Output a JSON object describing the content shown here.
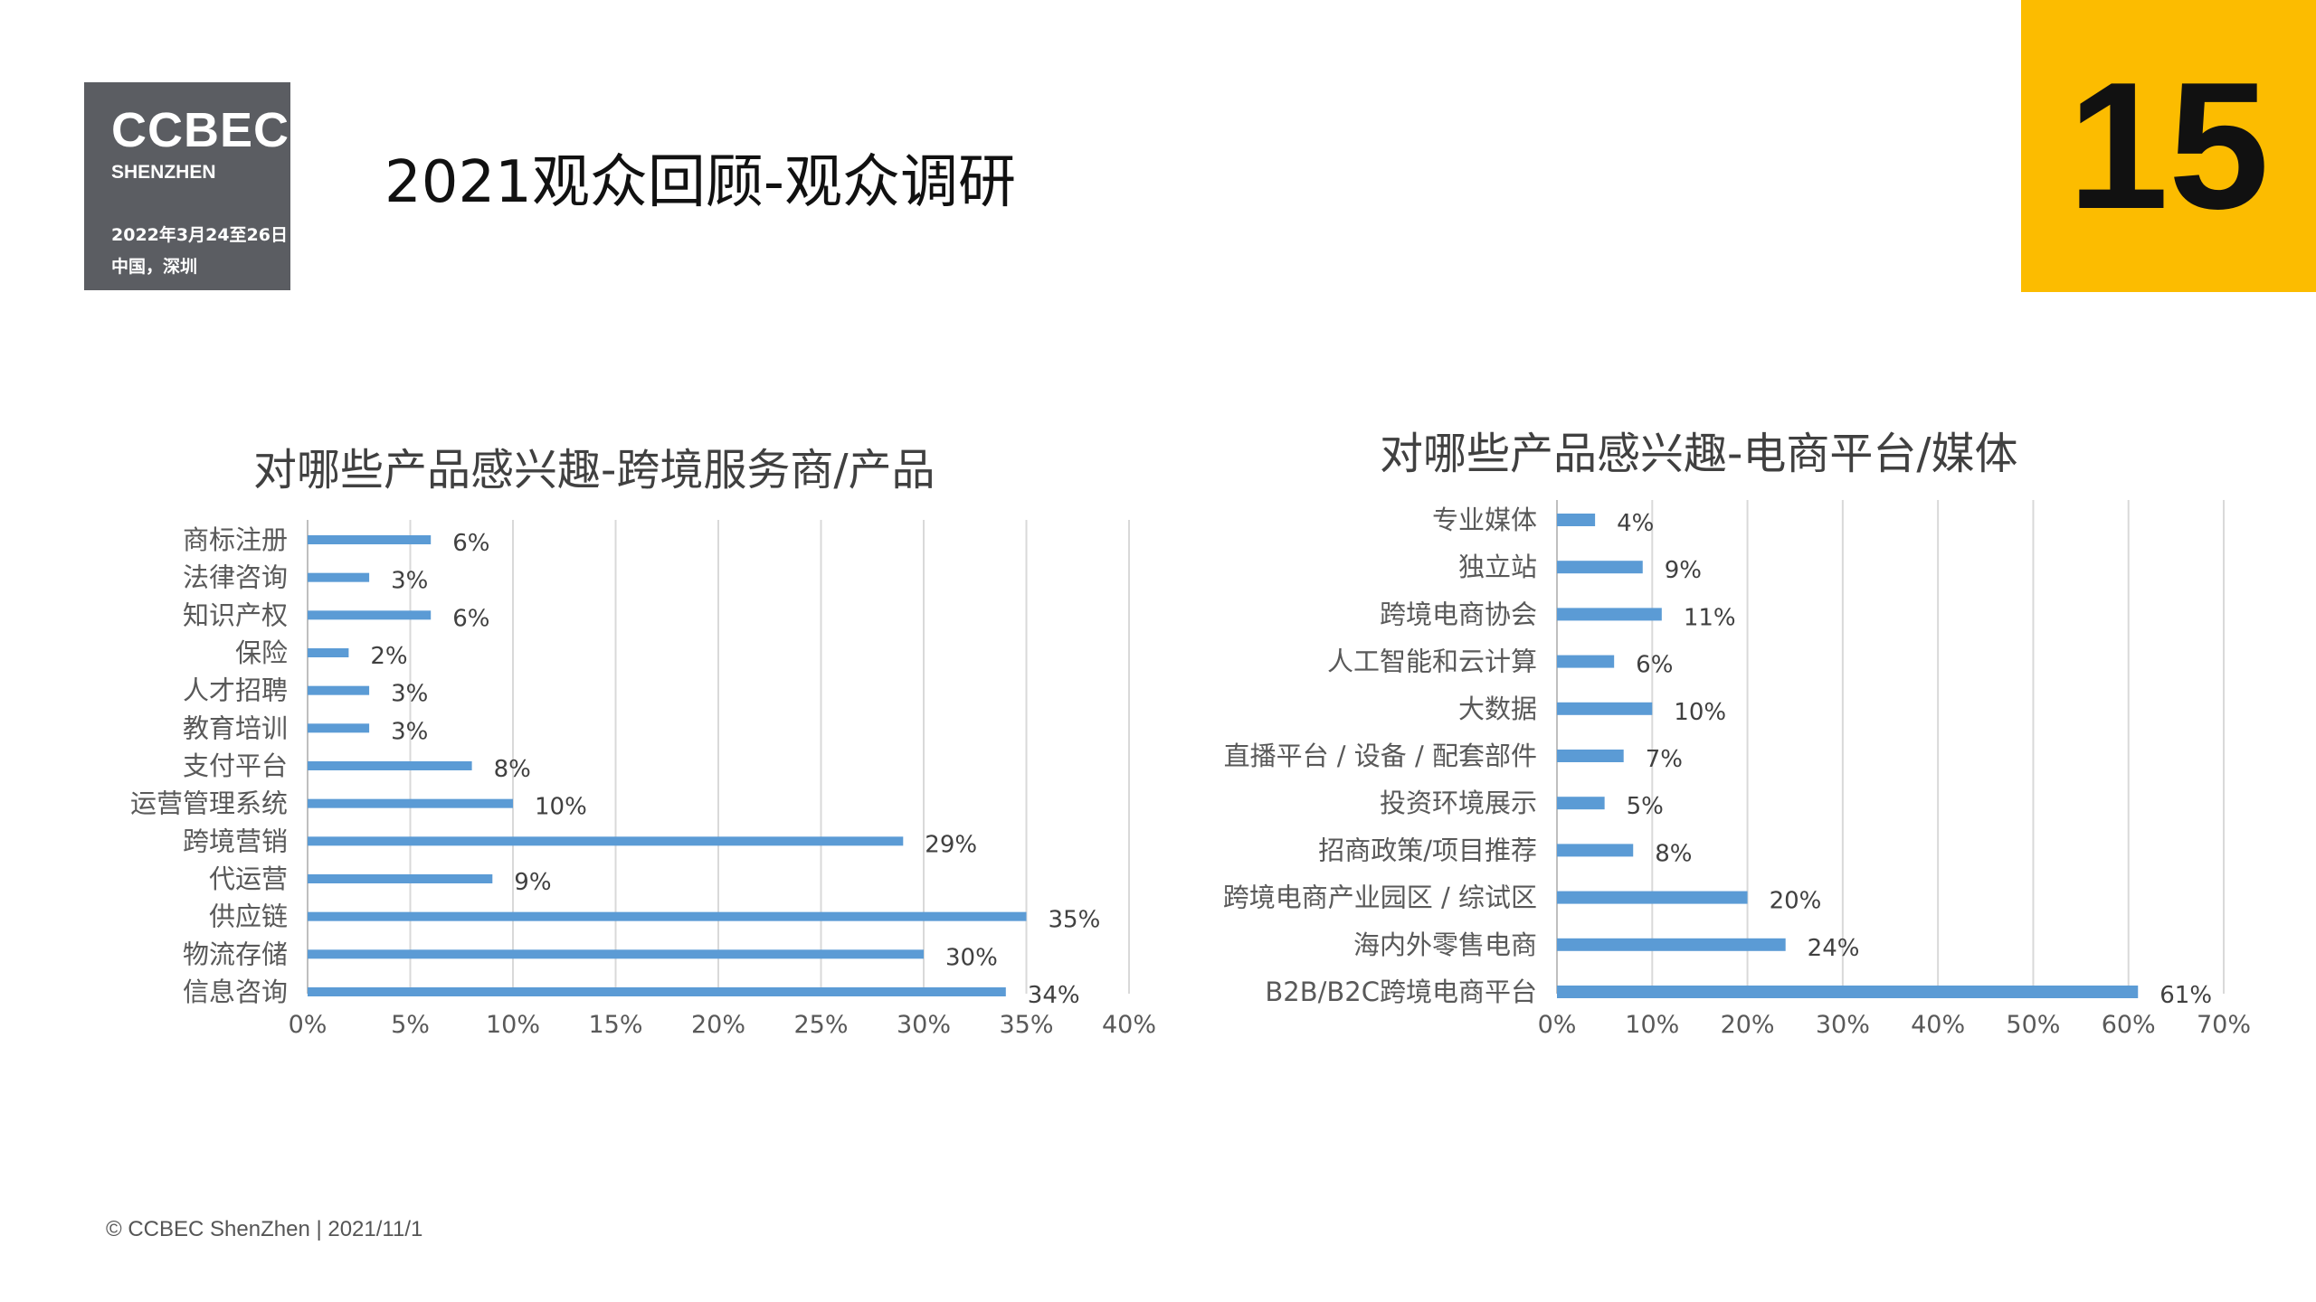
{
  "logo": {
    "brand": "CCBEC",
    "city": "SHENZHEN",
    "date": "2022年3月24至26日",
    "place": "中国，深圳"
  },
  "header": {
    "title": "2021观众回顾-观众调研",
    "page_number": "15"
  },
  "footer": {
    "text": "© CCBEC ShenZhen | 2021/11/1"
  },
  "colors": {
    "bar": "#5b9bd5",
    "grid": "#d9d9d9",
    "accent": "#fcbc00",
    "logo_bg": "#5b5d62"
  },
  "chart_data": [
    {
      "type": "bar",
      "orientation": "horizontal",
      "title": "对哪些产品感兴趣-跨境服务商/产品",
      "categories": [
        "商标注册",
        "法律咨询",
        "知识产权",
        "保险",
        "人才招聘",
        "教育培训",
        "支付平台",
        "运营管理系统",
        "跨境营销",
        "代运营",
        "供应链",
        "物流存储",
        "信息咨询"
      ],
      "values": [
        6,
        3,
        6,
        2,
        3,
        3,
        8,
        10,
        29,
        9,
        35,
        30,
        34
      ],
      "value_labels": [
        "6%",
        "3%",
        "6%",
        "2%",
        "3%",
        "3%",
        "8%",
        "10%",
        "29%",
        "9%",
        "35%",
        "30%",
        "34%"
      ],
      "xlim": [
        0,
        40
      ],
      "ticks": [
        "0%",
        "5%",
        "10%",
        "15%",
        "20%",
        "25%",
        "30%",
        "35%",
        "40%"
      ],
      "grid": true,
      "legend": "none"
    },
    {
      "type": "bar",
      "orientation": "horizontal",
      "title": "对哪些产品感兴趣-电商平台/媒体",
      "categories": [
        "专业媒体",
        "独立站",
        "跨境电商协会",
        "人工智能和云计算",
        "大数据",
        "直播平台 / 设备 / 配套部件",
        "投资环境展示",
        "招商政策/项目推荐",
        "跨境电商产业园区 / 综试区",
        "海内外零售电商",
        "B2B/B2C跨境电商平台"
      ],
      "values": [
        4,
        9,
        11,
        6,
        10,
        7,
        5,
        8,
        20,
        24,
        61
      ],
      "value_labels": [
        "4%",
        "9%",
        "11%",
        "6%",
        "10%",
        "7%",
        "5%",
        "8%",
        "20%",
        "24%",
        "61%"
      ],
      "xlim": [
        0,
        70
      ],
      "ticks": [
        "0%",
        "10%",
        "20%",
        "30%",
        "40%",
        "50%",
        "60%",
        "70%"
      ],
      "grid": true,
      "legend": "none"
    }
  ]
}
